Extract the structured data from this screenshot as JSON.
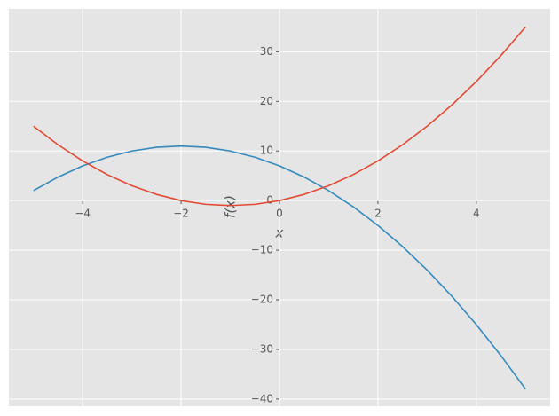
{
  "chart_data": {
    "type": "line",
    "x": [
      -5,
      -4.5,
      -4,
      -3.5,
      -3,
      -2.5,
      -2,
      -1.5,
      -1,
      -0.5,
      0,
      0.5,
      1,
      1.5,
      2,
      2.5,
      3,
      3.5,
      4,
      4.5,
      5
    ],
    "series": [
      {
        "color": "#348abd",
        "values": [
          2,
          4.75,
          7,
          8.75,
          10,
          10.75,
          11,
          10.75,
          10,
          8.75,
          7,
          4.75,
          2,
          -1.25,
          -5,
          -9.25,
          -14,
          -19.25,
          -25,
          -31.25,
          -38
        ]
      },
      {
        "color": "#e24a33",
        "values": [
          15,
          11.25,
          8,
          5.25,
          3,
          1.25,
          0,
          -0.75,
          -1,
          -0.75,
          0,
          1.25,
          3,
          5.25,
          8,
          11.25,
          15,
          19.25,
          24,
          29.25,
          35
        ]
      }
    ],
    "xlabel": "x",
    "ylabel": "f(x)",
    "xlim": [
      -5.5,
      5.5
    ],
    "ylim": [
      -41.45,
      38.65
    ],
    "xticks": [
      {
        "value": -4,
        "label": "−4"
      },
      {
        "value": -2,
        "label": "−2"
      },
      0,
      2,
      4
    ],
    "yticks": [
      {
        "value": -40,
        "label": "−40"
      },
      {
        "value": -30,
        "label": "−30"
      },
      {
        "value": -20,
        "label": "−20"
      },
      {
        "value": -10,
        "label": "−10"
      },
      0,
      10,
      20,
      30
    ],
    "grid": true
  }
}
